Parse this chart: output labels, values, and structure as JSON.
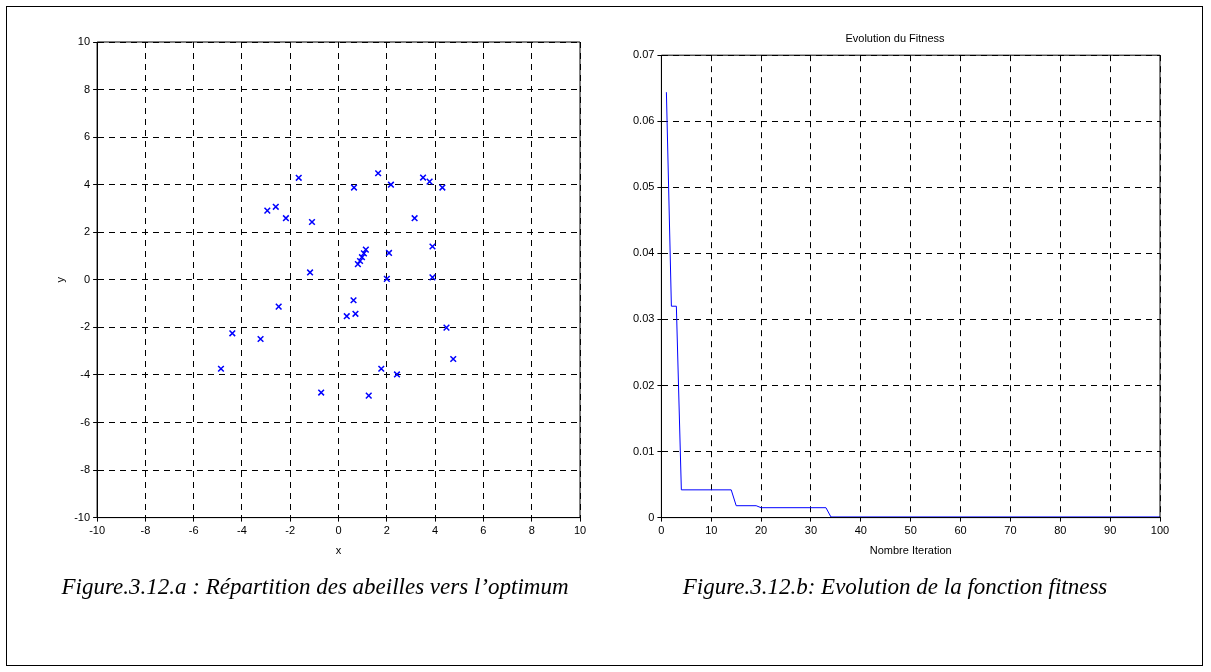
{
  "chart_data": [
    {
      "type": "scatter",
      "xlabel": "x",
      "ylabel": "y",
      "marker": "cross",
      "grid": true,
      "xlim": [
        -10,
        10
      ],
      "xticks": [
        -10,
        -8,
        -6,
        -4,
        -2,
        0,
        2,
        4,
        6,
        8,
        10
      ],
      "ylim": [
        -10,
        10
      ],
      "yticks": [
        -10,
        -8,
        -6,
        -4,
        -2,
        0,
        2,
        4,
        6,
        8,
        10
      ],
      "series": [
        {
          "color": "#0000ff",
          "x": [
            -1.65,
            1.64,
            0.64,
            2.17,
            3.5,
            3.77,
            4.3,
            -2.95,
            -2.6,
            -2.18,
            -1.1,
            3.15,
            3.89,
            2.09,
            0.8,
            0.89,
            0.97,
            1.05,
            1.13,
            -1.18,
            2.0,
            3.89,
            0.62,
            0.34,
            0.7,
            -2.48,
            -4.4,
            -3.23,
            4.47,
            4.75,
            -4.87,
            1.77,
            2.42,
            -0.72,
            1.25
          ],
          "values": [
            4.29,
            4.48,
            3.88,
            4.0,
            4.3,
            4.13,
            3.88,
            2.91,
            3.07,
            2.59,
            2.43,
            2.59,
            1.4,
            1.13,
            0.66,
            0.79,
            0.95,
            1.11,
            1.27,
            0.31,
            0.04,
            0.1,
            -0.86,
            -1.53,
            -1.43,
            -1.13,
            -2.25,
            -2.49,
            -2.01,
            -3.33,
            -3.74,
            -3.74,
            -3.98,
            -4.74,
            -4.87
          ]
        }
      ],
      "annotations": [
        "Figure.3.12.a : Répartition des abeilles vers l’optimum"
      ]
    },
    {
      "type": "line",
      "title": "Evolution du Fitness",
      "xlabel": "Nombre Iteration",
      "grid": true,
      "marker": "none",
      "line_style": "solid",
      "xlim": [
        0,
        100
      ],
      "xticks": [
        0,
        10,
        20,
        30,
        40,
        50,
        60,
        70,
        80,
        90,
        100
      ],
      "ylim": [
        0,
        0.07
      ],
      "yticks": [
        0,
        0.01,
        0.02,
        0.03,
        0.04,
        0.05,
        0.06,
        0.07
      ],
      "series": [
        {
          "color": "#0000ff",
          "x": [
            1,
            2,
            3,
            4,
            14,
            15,
            19,
            20,
            33,
            34,
            100
          ],
          "values": [
            0.0644,
            0.032,
            0.032,
            0.0042,
            0.0042,
            0.0018,
            0.0018,
            0.0015,
            0.0015,
            0.0001,
            0.0001
          ]
        }
      ],
      "annotations": [
        "Figure.3.12.b: Evolution de la fonction fitness"
      ]
    }
  ]
}
